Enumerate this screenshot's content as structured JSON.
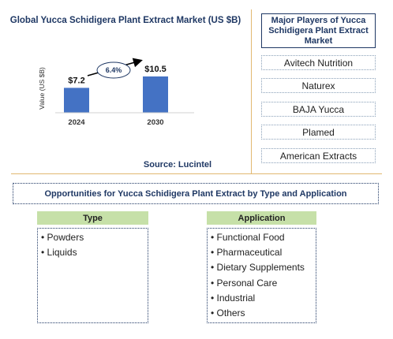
{
  "chart_data": {
    "type": "bar",
    "title": "Global Yucca Schidigera Plant Extract Market (US $B)",
    "ylabel": "Value (US $B)",
    "categories": [
      "2024",
      "2030"
    ],
    "values": [
      7.2,
      10.5
    ],
    "value_labels": [
      "$7.2",
      "$10.5"
    ],
    "cagr_label": "6.4%",
    "bar_color": "#4472c4",
    "ylim": [
      0,
      12
    ]
  },
  "source": "Source: Lucintel",
  "players": {
    "title": "Major Players of Yucca Schidigera Plant Extract Market",
    "items": [
      "Avitech Nutrition",
      "Naturex",
      "BAJA Yucca",
      "Plamed",
      "American Extracts"
    ]
  },
  "opportunities": {
    "title": "Opportunities for Yucca Schidigera Plant Extract by Type and Application",
    "type": {
      "header": "Type",
      "items": [
        "• Powders",
        "• Liquids"
      ]
    },
    "application": {
      "header": "Application",
      "items": [
        "• Functional Food",
        "• Pharmaceutical",
        "• Dietary Supplements",
        "• Personal Care",
        "• Industrial",
        "• Others"
      ]
    }
  }
}
